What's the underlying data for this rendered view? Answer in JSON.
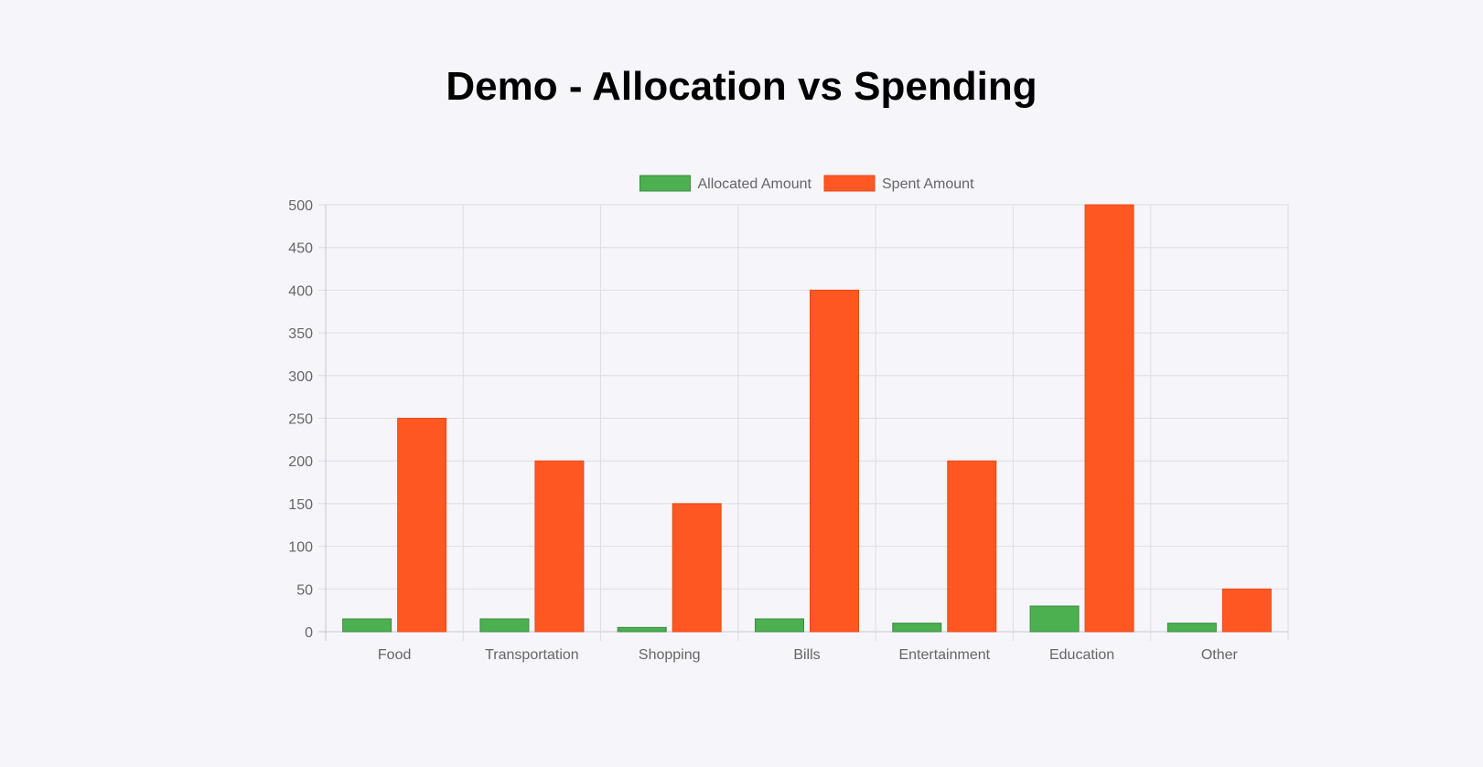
{
  "title": "Demo - Allocation vs Spending",
  "chart_data": {
    "type": "bar",
    "categories": [
      "Food",
      "Transportation",
      "Shopping",
      "Bills",
      "Entertainment",
      "Education",
      "Other"
    ],
    "series": [
      {
        "name": "Allocated Amount",
        "values": [
          15,
          15,
          5,
          15,
          10,
          30,
          10
        ],
        "color": "#4caf50",
        "border": "#3d8b40"
      },
      {
        "name": "Spent Amount",
        "values": [
          250,
          200,
          150,
          400,
          200,
          500,
          50
        ],
        "color": "#ff5722",
        "border": "#e64a19"
      }
    ],
    "ylim": [
      0,
      500
    ],
    "yticks": [
      "0",
      "50",
      "100",
      "150",
      "200",
      "250",
      "300",
      "350",
      "400",
      "450",
      "500"
    ],
    "grid": true,
    "legend": "top"
  }
}
